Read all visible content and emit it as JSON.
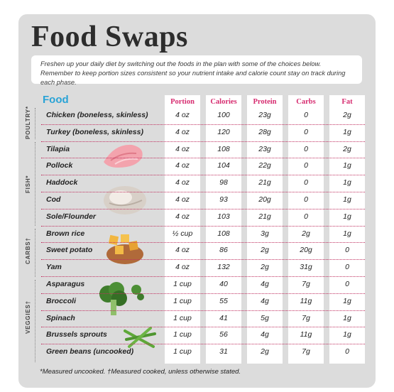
{
  "title": "Food Swaps",
  "intro": "Freshen up your daily diet by switching out the foods in the plan with some of the choices below. Remember to keep portion sizes consistent so your nutrient intake and calorie count stay on track during each phase.",
  "food_header": "Food",
  "columns": [
    "Portion",
    "Calories",
    "Protein",
    "Carbs",
    "Fat"
  ],
  "groups": [
    "POULTRY*",
    "FISH*",
    "CARBS†",
    "VEGGIES†"
  ],
  "rows": [
    {
      "name": "Chicken (boneless, skinless)",
      "portion": "4 oz",
      "calories": "100",
      "protein": "23g",
      "carbs": "0",
      "fat": "2g"
    },
    {
      "name": "Turkey (boneless, skinless)",
      "portion": "4 oz",
      "calories": "120",
      "protein": "28g",
      "carbs": "0",
      "fat": "1g"
    },
    {
      "name": "Tilapia",
      "portion": "4 oz",
      "calories": "108",
      "protein": "23g",
      "carbs": "0",
      "fat": "2g"
    },
    {
      "name": "Pollock",
      "portion": "4 oz",
      "calories": "104",
      "protein": "22g",
      "carbs": "0",
      "fat": "1g"
    },
    {
      "name": "Haddock",
      "portion": "4 oz",
      "calories": "98",
      "protein": "21g",
      "carbs": "0",
      "fat": "1g"
    },
    {
      "name": "Cod",
      "portion": "4 oz",
      "calories": "93",
      "protein": "20g",
      "carbs": "0",
      "fat": "1g"
    },
    {
      "name": "Sole/Flounder",
      "portion": "4 oz",
      "calories": "103",
      "protein": "21g",
      "carbs": "0",
      "fat": "1g"
    },
    {
      "name": "Brown rice",
      "portion": "½ cup",
      "calories": "108",
      "protein": "3g",
      "carbs": "2g",
      "fat": "1g"
    },
    {
      "name": "Sweet potato",
      "portion": "4 oz",
      "calories": "86",
      "protein": "2g",
      "carbs": "20g",
      "fat": "0"
    },
    {
      "name": "Yam",
      "portion": "4 oz",
      "calories": "132",
      "protein": "2g",
      "carbs": "31g",
      "fat": "0"
    },
    {
      "name": "Asparagus",
      "portion": "1 cup",
      "calories": "40",
      "protein": "4g",
      "carbs": "7g",
      "fat": "0"
    },
    {
      "name": "Broccoli",
      "portion": "1 cup",
      "calories": "55",
      "protein": "4g",
      "carbs": "11g",
      "fat": "1g"
    },
    {
      "name": "Spinach",
      "portion": "1 cup",
      "calories": "41",
      "protein": "5g",
      "carbs": "7g",
      "fat": "1g"
    },
    {
      "name": "Brussels sprouts",
      "portion": "1 cup",
      "calories": "56",
      "protein": "4g",
      "carbs": "11g",
      "fat": "1g"
    },
    {
      "name": "Green beans (uncooked)",
      "portion": "1 cup",
      "calories": "31",
      "protein": "2g",
      "carbs": "7g",
      "fat": "0"
    }
  ],
  "footnote": "*Measured uncooked. †Measured cooked, unless otherwise stated.",
  "colors": {
    "accent_pink": "#d62b6f",
    "accent_blue": "#29a3d6",
    "card_gray": "#dcdcdc"
  }
}
